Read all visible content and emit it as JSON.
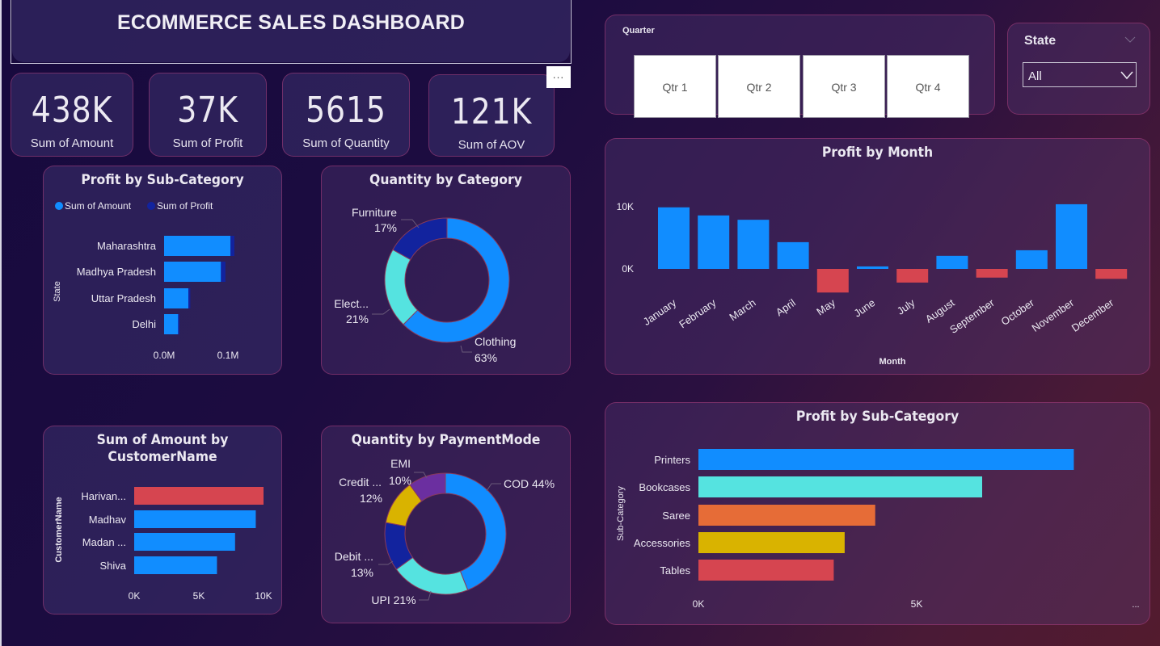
{
  "header": {
    "title": "ECOMMERCE SALES DASHBOARD",
    "more_options": "..."
  },
  "kpis": [
    {
      "value": "438K",
      "label": "Sum of Amount"
    },
    {
      "value": "37K",
      "label": "Sum of Profit"
    },
    {
      "value": "5615",
      "label": "Sum of Quantity"
    },
    {
      "value": "121K",
      "label": "Sum of AOV"
    }
  ],
  "quarter_slicer": {
    "label": "Quarter",
    "options": [
      "Qtr 1",
      "Qtr 2",
      "Qtr 3",
      "Qtr 4"
    ]
  },
  "state_slicer": {
    "label": "State",
    "selected": "All"
  },
  "colors": {
    "blue": "#118dff",
    "dark_blue": "#12239e",
    "teal": "#55e3e0",
    "red": "#d64550",
    "orange": "#e66c37",
    "gold": "#d9b300",
    "purple": "#6b2fa0"
  },
  "chart_data": [
    {
      "id": "state_bar",
      "type": "bar",
      "orientation": "horizontal",
      "stacked": true,
      "title": "Profit by Sub-Category",
      "ylabel": "State",
      "xlabel": "",
      "legend": [
        "Sum of Amount",
        "Sum of Profit"
      ],
      "legend_position": "top-left",
      "categories": [
        "Maharashtra",
        "Madhya Pradesh",
        "Uttar Pradesh",
        "Delhi"
      ],
      "series": [
        {
          "name": "Sum of Amount",
          "values": [
            0.104,
            0.089,
            0.038,
            0.022
          ]
        },
        {
          "name": "Sum of Profit",
          "values": [
            0.006,
            0.007,
            0.003,
            0.002
          ]
        }
      ],
      "xticks": [
        "0.0M",
        "0.1M"
      ],
      "xtick_values": [
        0,
        0.1
      ],
      "unit": "M"
    },
    {
      "id": "category_donut",
      "type": "pie",
      "donut": true,
      "title": "Quantity by Category",
      "slices": [
        {
          "label": "Clothing",
          "display": "Clothing",
          "percent": 63
        },
        {
          "label": "Electronics",
          "display": "Elect...",
          "percent": 21
        },
        {
          "label": "Furniture",
          "display": "Furniture",
          "percent": 17
        }
      ]
    },
    {
      "id": "month_bar",
      "type": "bar",
      "title": "Profit by Month",
      "xlabel": "Month",
      "ylabel": "",
      "categories": [
        "January",
        "February",
        "March",
        "April",
        "May",
        "June",
        "July",
        "August",
        "September",
        "October",
        "November",
        "December"
      ],
      "values": [
        9.9,
        8.6,
        7.9,
        4.3,
        -3.8,
        0.4,
        -2.2,
        2.1,
        -1.4,
        3.0,
        10.4,
        -1.6
      ],
      "unit": "K",
      "yticks": [
        "0K",
        "10K"
      ],
      "ytick_values": [
        0,
        10
      ],
      "grid": false
    },
    {
      "id": "customer_bar",
      "type": "bar",
      "orientation": "horizontal",
      "title": "Sum of Amount by CustomerName",
      "title_lines": [
        "Sum of Amount by",
        "CustomerName"
      ],
      "ylabel": "CustomerName",
      "categories": [
        "Harivan...",
        "Madhav",
        "Madan ...",
        "Shiva"
      ],
      "values": [
        10.0,
        9.4,
        7.8,
        6.4
      ],
      "highlight_index": 0,
      "unit": "K",
      "xticks": [
        "0K",
        "5K",
        "10K"
      ],
      "xtick_values": [
        0,
        5,
        10
      ]
    },
    {
      "id": "payment_donut",
      "type": "pie",
      "donut": true,
      "title": "Quantity by PaymentMode",
      "slices": [
        {
          "label": "COD",
          "display": "COD 44%",
          "percent": 44
        },
        {
          "label": "UPI",
          "display": "UPI 21%",
          "percent": 21
        },
        {
          "label": "Debit Card",
          "display": "Debit ...",
          "percent": 13
        },
        {
          "label": "Credit Card",
          "display": "Credit ...",
          "percent": 12
        },
        {
          "label": "EMI",
          "display": "EMI",
          "percent": 10
        }
      ]
    },
    {
      "id": "subcat_bar",
      "type": "bar",
      "orientation": "horizontal",
      "title": "Profit by Sub-Category",
      "ylabel": "Sub-Category",
      "categories": [
        "Printers",
        "Bookcases",
        "Saree",
        "Accessories",
        "Tables"
      ],
      "values": [
        8.6,
        6.5,
        4.05,
        3.35,
        3.1
      ],
      "unit": "K",
      "xticks": [
        "0K",
        "5K"
      ],
      "xtick_values": [
        0,
        5
      ],
      "overflow_indicator": "..."
    }
  ]
}
